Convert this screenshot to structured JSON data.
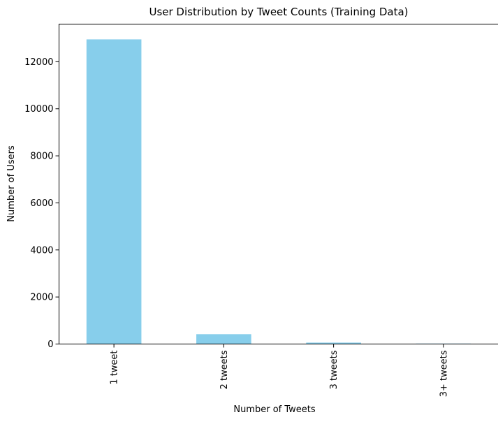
{
  "chart_data": {
    "type": "bar",
    "title": "User Distribution by Tweet Counts (Training Data)",
    "xlabel": "Number of Tweets",
    "ylabel": "Number of Users",
    "categories": [
      "1 tweet",
      "2 tweets",
      "3 tweets",
      "3+ tweets"
    ],
    "values": [
      12950,
      420,
      60,
      20
    ],
    "ylim": [
      0,
      13600
    ],
    "yticks": [
      0,
      2000,
      4000,
      6000,
      8000,
      10000,
      12000
    ],
    "ytick_labels": [
      "0",
      "2000",
      "4000",
      "6000",
      "8000",
      "10000",
      "12000"
    ],
    "bar_color": "#87ceeb",
    "grid": false,
    "legend": false
  }
}
